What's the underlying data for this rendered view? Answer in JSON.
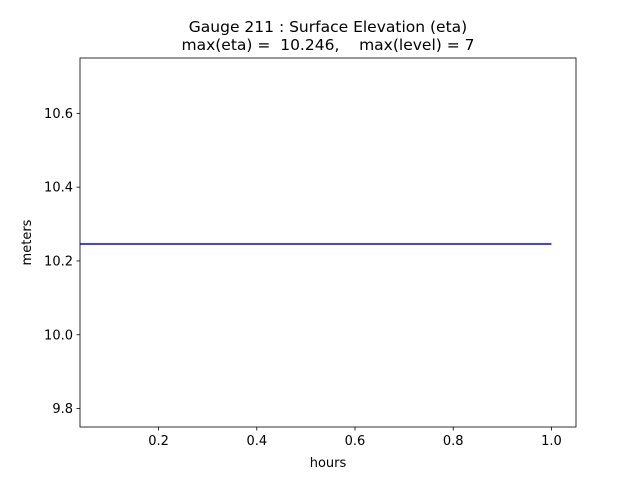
{
  "chart_data": {
    "type": "line",
    "title": "Gauge 211 : Surface Elevation (eta)",
    "subtitle": "max(eta) =  10.246,    max(level) = 7",
    "xlabel": "hours",
    "ylabel": "meters",
    "xlim": [
      0.04,
      1.05
    ],
    "ylim": [
      9.75,
      10.75
    ],
    "xticks": [
      0.2,
      0.4,
      0.6,
      0.8,
      1.0
    ],
    "xtick_labels": [
      "0.2",
      "0.4",
      "0.6",
      "0.8",
      "1.0"
    ],
    "yticks": [
      9.8,
      10.0,
      10.2,
      10.4,
      10.6
    ],
    "ytick_labels": [
      "9.8",
      "10.0",
      "10.2",
      "10.4",
      "10.6"
    ],
    "grid": false,
    "series": [
      {
        "color": "#0000ff",
        "x": [
          0.04,
          1.0
        ],
        "y": [
          10.246,
          10.246
        ]
      }
    ]
  }
}
